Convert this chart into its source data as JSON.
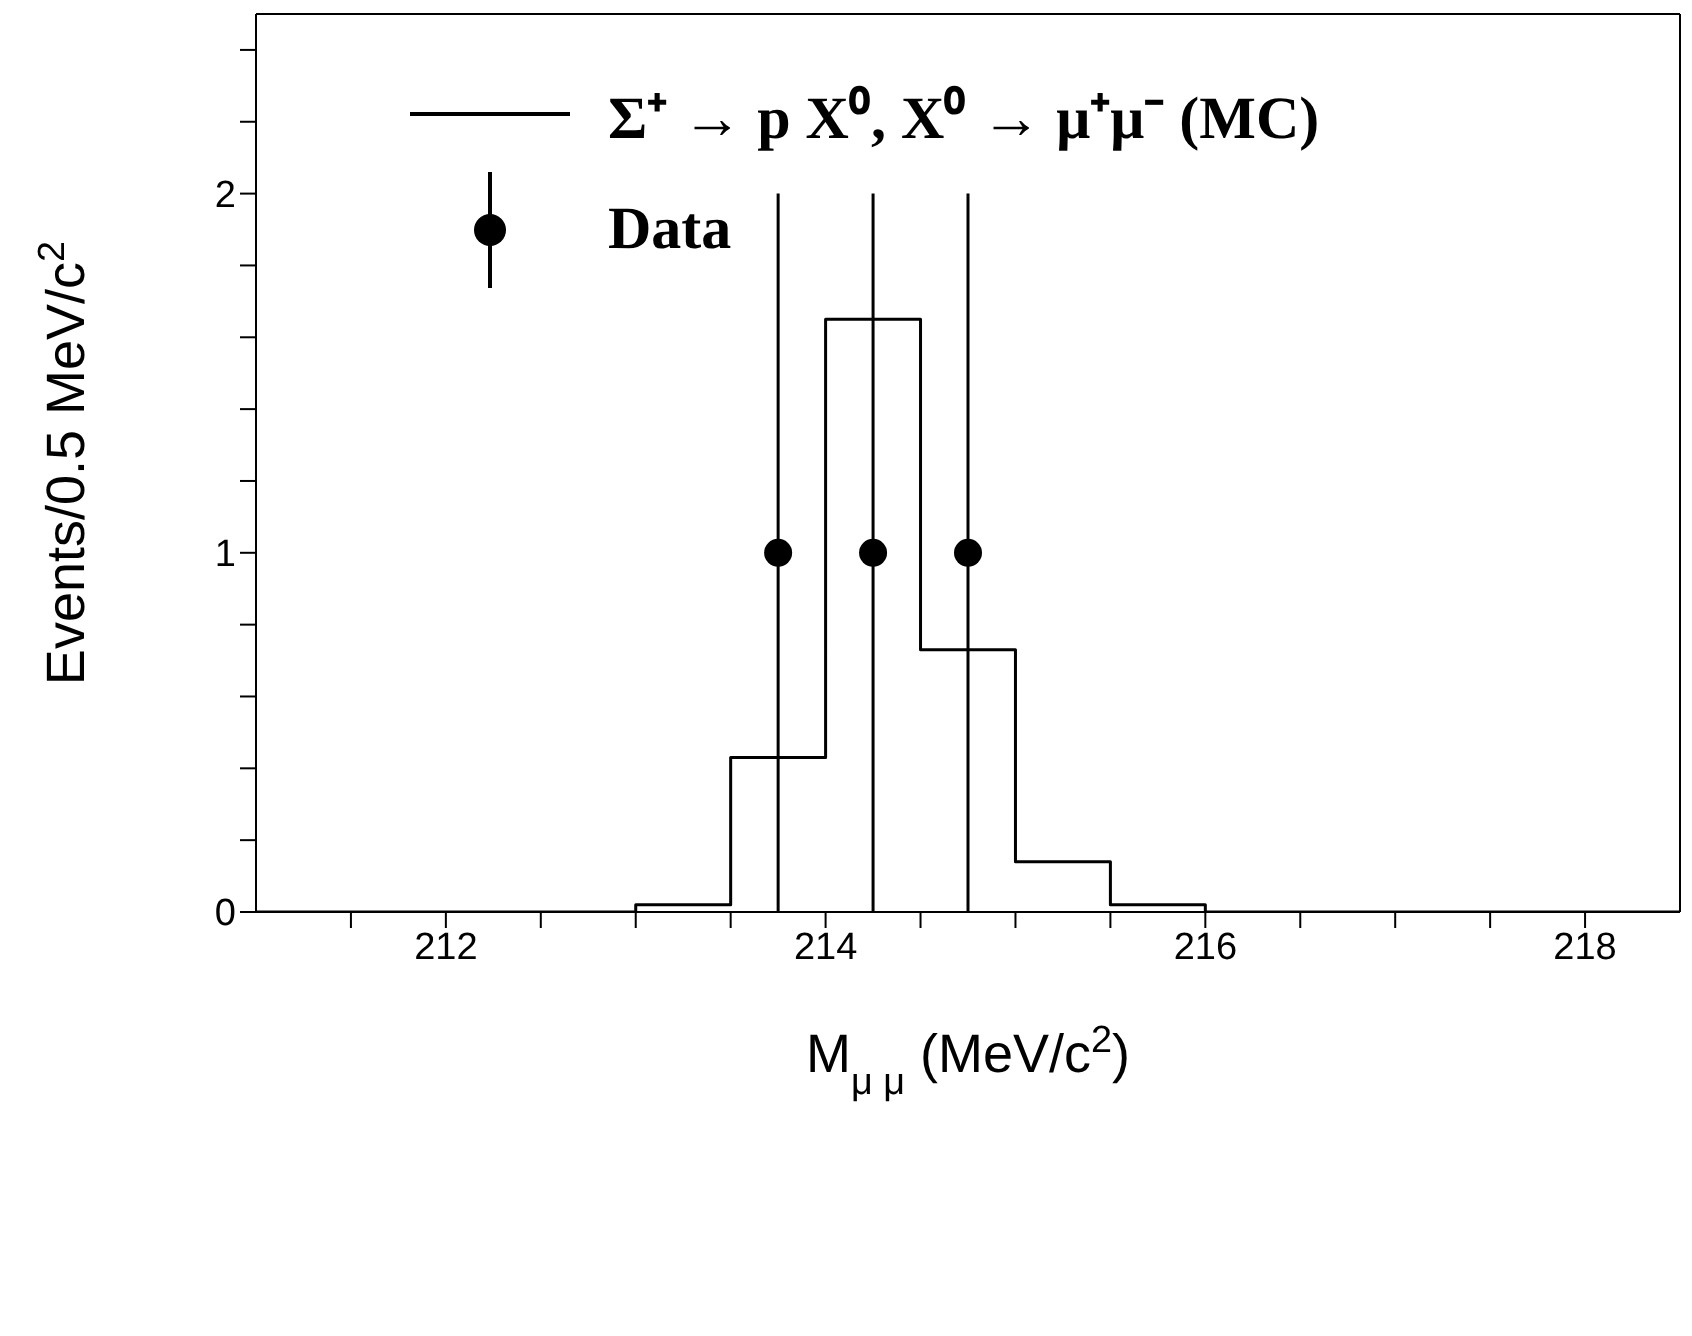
{
  "chart_data": {
    "type": "histogram",
    "xlabel": "M$_{μ μ}$ (MeV/c$^{2}$)",
    "ylabel": "Events/0.5 MeV/c$^{2}$",
    "bins": [
      211,
      211.5,
      212,
      212.5,
      213,
      213.5,
      214,
      214.5,
      215,
      215.5,
      216,
      216.5,
      217,
      217.5,
      218,
      218.5
    ],
    "series": [
      {
        "name": "Σ⁺ → p X⁰, X⁰ → μ⁺μ⁻ (MC)",
        "color": "#000000",
        "values": [
          0,
          0,
          0,
          0,
          0.02,
          0.43,
          1.65,
          0.73,
          0.14,
          0.02,
          0,
          0,
          0,
          0,
          0
        ]
      },
      {
        "name": "Data",
        "type": "scatter",
        "color": "#000000",
        "x": [
          213.75,
          214.25,
          214.75
        ],
        "values": [
          1,
          1,
          1
        ],
        "errors": [
          1,
          1,
          1
        ]
      }
    ],
    "xlim": [
      211,
      218.5
    ],
    "xticks": [
      {
        "value": 211.5,
        "label": null
      },
      212,
      {
        "value": 212.5,
        "label": null
      },
      {
        "value": 213,
        "label": null
      },
      {
        "value": 213.5,
        "label": null
      },
      214,
      {
        "value": 214.5,
        "label": null
      },
      {
        "value": 215,
        "label": null
      },
      {
        "value": 215.5,
        "label": null
      },
      216,
      {
        "value": 216.5,
        "label": null
      },
      {
        "value": 217,
        "label": null
      },
      {
        "value": 217.5,
        "label": null
      },
      218
    ],
    "ylim": [
      0,
      2.5
    ],
    "yticks": [
      0,
      {
        "value": 0.2,
        "label": null
      },
      {
        "value": 0.4,
        "label": null
      },
      {
        "value": 0.6,
        "label": null
      },
      {
        "value": 0.8,
        "label": null
      },
      1,
      {
        "value": 1.2,
        "label": null
      },
      {
        "value": 1.4,
        "label": null
      },
      {
        "value": 1.6,
        "label": null
      },
      {
        "value": 1.8,
        "label": null
      },
      2,
      {
        "value": 2.2,
        "label": null
      },
      {
        "value": 2.4,
        "label": null
      }
    ],
    "legend": "top",
    "marker": "circle"
  }
}
